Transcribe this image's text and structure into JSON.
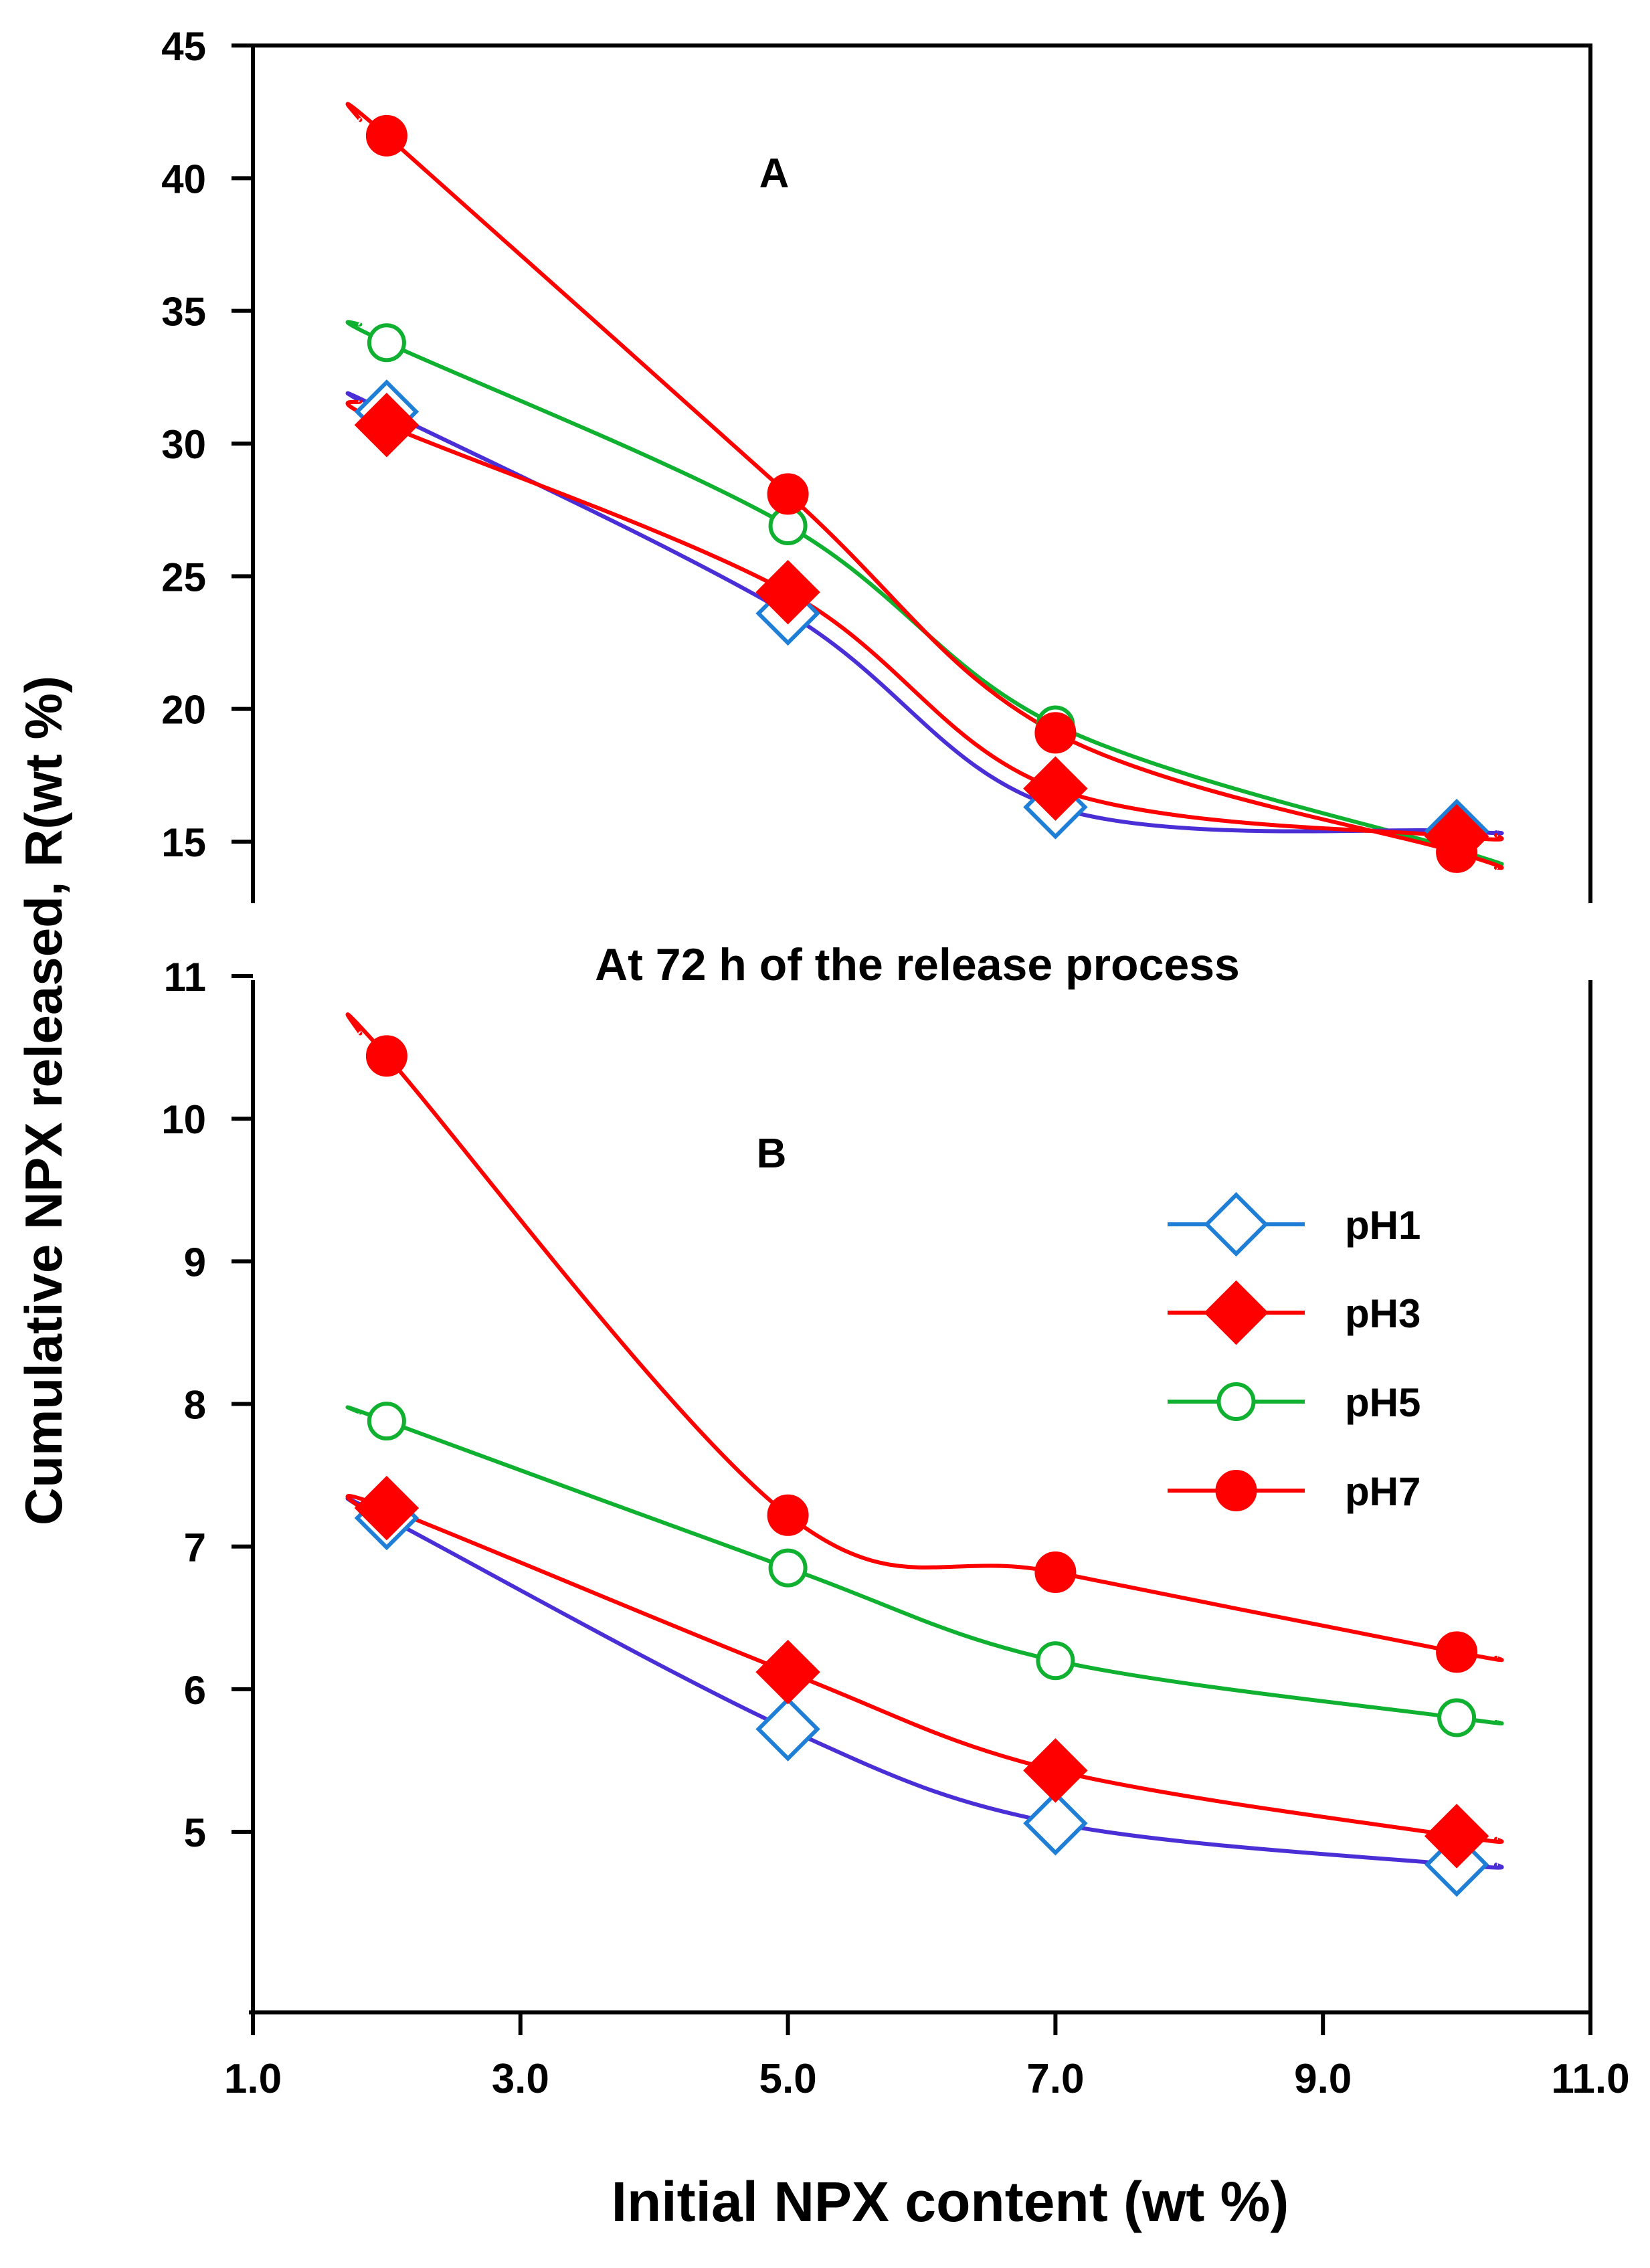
{
  "colors": {
    "axis": "#000000",
    "pH1_marker": "#1f7fd6",
    "pH1_line": "#4b2fd6",
    "pH3": "#ff0000",
    "pH5": "#10b030",
    "pH7": "#ff0000"
  },
  "ylabel": "Cumulative NPX released, R(wt %)",
  "xlabel": "Initial NPX content (wt %)",
  "caption": "At 72 h of the release process",
  "legend": [
    {
      "label": "pH1",
      "marker": "diamond-open",
      "color_key": "pH1_marker"
    },
    {
      "label": "pH3",
      "marker": "diamond-filled",
      "color_key": "pH3"
    },
    {
      "label": "pH5",
      "marker": "circle-open",
      "color_key": "pH5"
    },
    {
      "label": "pH7",
      "marker": "circle-filled",
      "color_key": "pH7"
    }
  ],
  "chart_data": [
    {
      "panel": "A",
      "type": "line",
      "title": "A",
      "xlabel": "Initial NPX content (wt %)",
      "ylabel": "Cumulative NPX released, R(wt %)",
      "x": [
        2.0,
        5.0,
        7.0,
        10.0
      ],
      "xlim": [
        1.0,
        11.0
      ],
      "ylim": [
        13.0,
        45.0
      ],
      "yticks": [
        "15",
        "20",
        "25",
        "30",
        "35",
        "40",
        "45"
      ],
      "series": [
        {
          "name": "pH1",
          "values": [
            31.2,
            23.6,
            16.3,
            15.4
          ]
        },
        {
          "name": "pH3",
          "values": [
            30.7,
            24.4,
            17.0,
            15.2
          ]
        },
        {
          "name": "pH5",
          "values": [
            33.8,
            26.9,
            19.4,
            14.7
          ]
        },
        {
          "name": "pH7",
          "values": [
            41.6,
            28.1,
            19.1,
            14.6
          ]
        }
      ]
    },
    {
      "panel": "B",
      "type": "line",
      "title": "B",
      "xlabel": "Initial NPX content (wt %)",
      "ylabel": "Cumulative NPX released, R(wt %)",
      "x": [
        2.0,
        5.0,
        7.0,
        10.0
      ],
      "xlim": [
        1.0,
        11.0
      ],
      "ylim": [
        4.0,
        11.0
      ],
      "xticks": [
        "1.0",
        "3.0",
        "5.0",
        "7.0",
        "9.0",
        "11.0"
      ],
      "yticks": [
        "5",
        "6",
        "7",
        "8",
        "9",
        "10",
        "11"
      ],
      "series": [
        {
          "name": "pH1",
          "values": [
            7.2,
            5.72,
            5.06,
            4.77
          ]
        },
        {
          "name": "pH3",
          "values": [
            7.27,
            6.12,
            5.43,
            4.97
          ]
        },
        {
          "name": "pH5",
          "values": [
            7.88,
            6.85,
            6.2,
            5.8
          ]
        },
        {
          "name": "pH7",
          "values": [
            10.44,
            7.22,
            6.82,
            6.26
          ]
        }
      ]
    }
  ]
}
